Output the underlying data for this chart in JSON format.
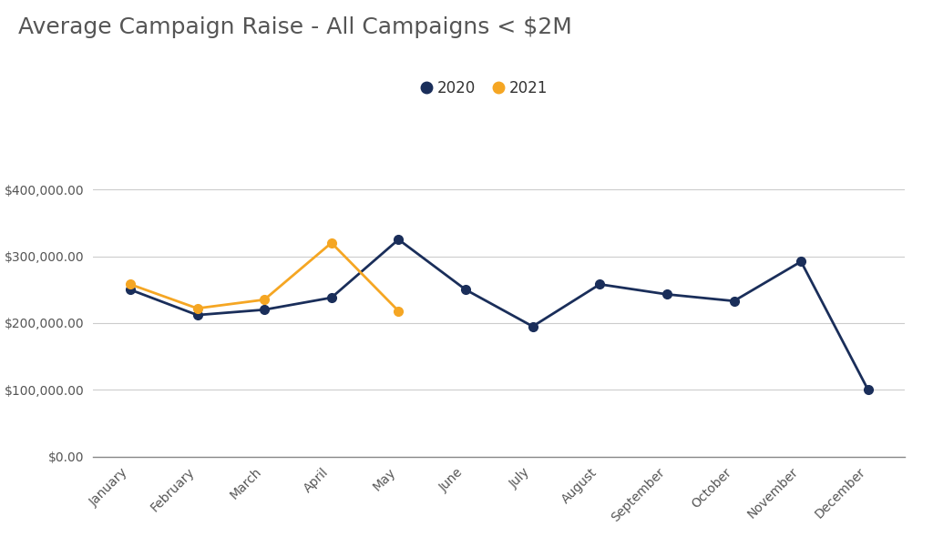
{
  "title": "Average Campaign Raise - All Campaigns < $2M",
  "months": [
    "January",
    "February",
    "March",
    "April",
    "May",
    "June",
    "July",
    "August",
    "September",
    "October",
    "November",
    "December"
  ],
  "data_2020": [
    250000,
    212000,
    220000,
    238000,
    325000,
    250000,
    195000,
    258000,
    243000,
    233000,
    292000,
    100000
  ],
  "data_2021": [
    258000,
    222000,
    235000,
    320000,
    218000,
    null,
    null,
    null,
    null,
    null,
    null,
    null
  ],
  "color_2020": "#1a2e5a",
  "color_2021": "#f5a623",
  "background_color": "#ffffff",
  "ylim": [
    0,
    450000
  ],
  "yticks": [
    0,
    100000,
    200000,
    300000,
    400000
  ],
  "legend_labels": [
    "2020",
    "2021"
  ],
  "title_fontsize": 18,
  "tick_fontsize": 10,
  "legend_fontsize": 12,
  "marker_size": 7,
  "line_width": 2.0
}
